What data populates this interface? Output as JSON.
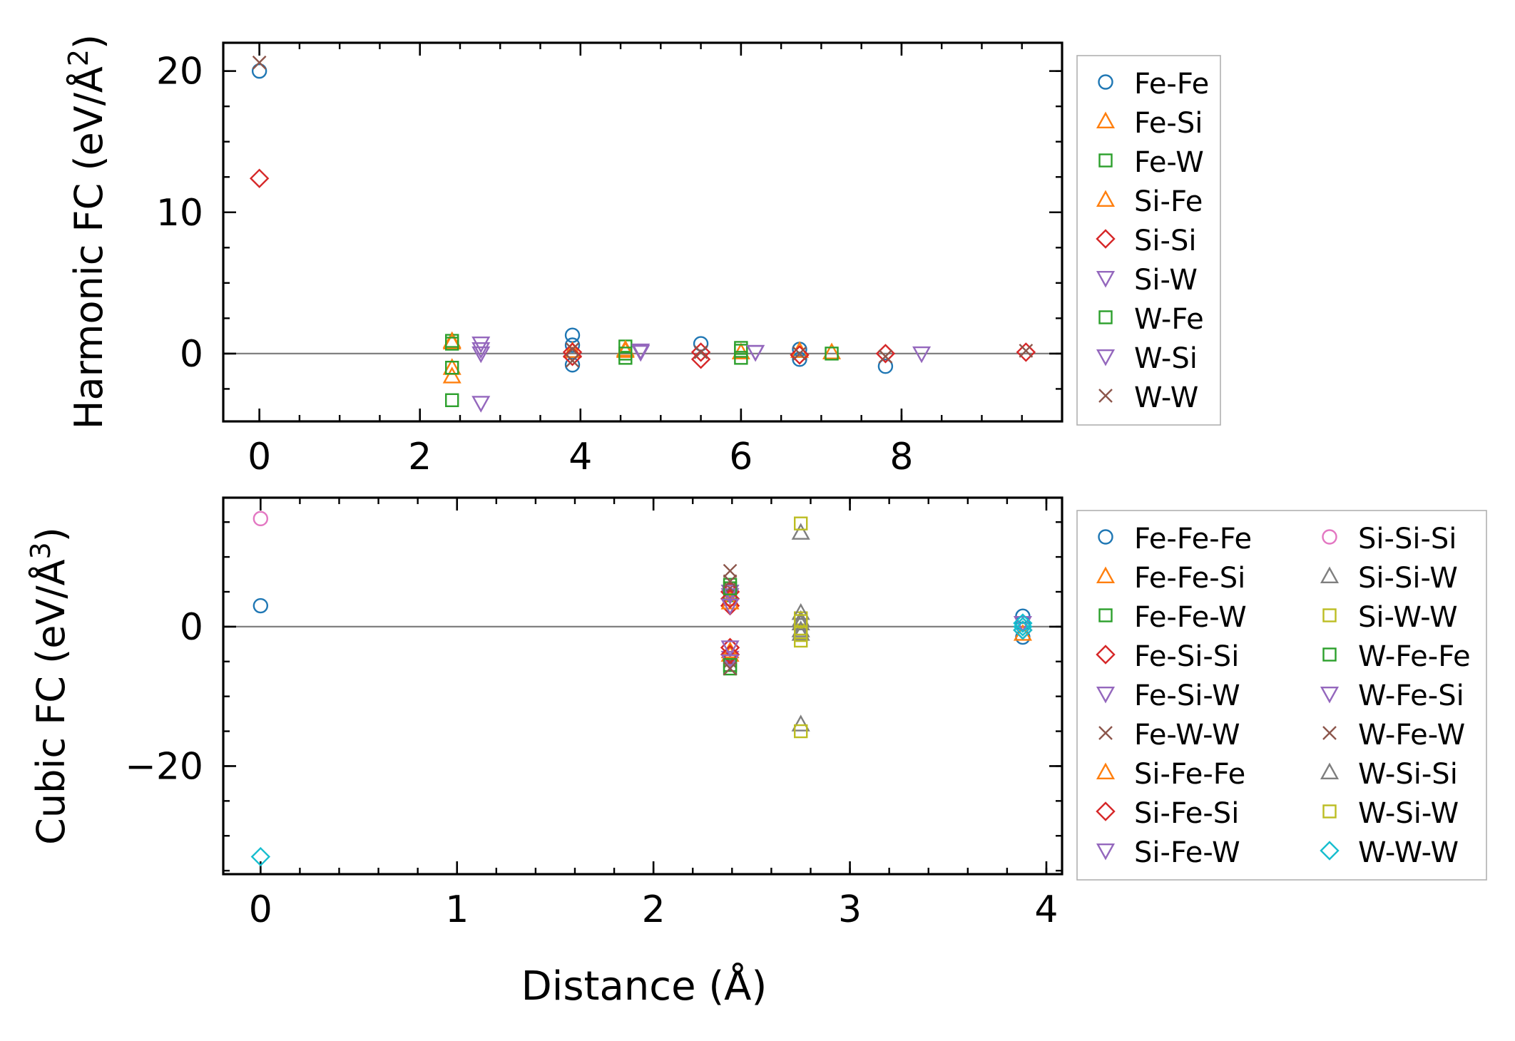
{
  "colors": {
    "c0": "#1f77b4",
    "c1": "#ff7f0e",
    "c2": "#2ca02c",
    "c3": "#d62728",
    "c4": "#9467bd",
    "c5": "#8c564b",
    "c6": "#e377c2",
    "c7": "#7f7f7f",
    "c8": "#bcbd22",
    "c9": "#17becf",
    "zero_line": "#808080"
  },
  "xlabel": "Distance (Å)",
  "chart_data": [
    {
      "type": "scatter",
      "ylabel": "Harmonic FC (eV/Å²)",
      "ylabel_text": "Harmonic FC (eV/Å",
      "ylabel_sup": "2",
      "ylabel_close": ")",
      "xlim": [
        -0.45,
        10.0
      ],
      "ylim": [
        -4.8,
        22.0
      ],
      "xticks": [
        0,
        2,
        4,
        6,
        8
      ],
      "xtick_labels": [
        "0",
        "2",
        "4",
        "6",
        "8"
      ],
      "yticks": [
        0,
        10,
        20
      ],
      "ytick_labels": [
        "0",
        "10",
        "20"
      ],
      "reference_line": 0,
      "legend_columns": 1,
      "series": [
        {
          "name": "Fe-Fe",
          "marker": "circle",
          "color": "#1f77b4",
          "x": [
            0,
            3.9,
            3.9,
            3.9,
            5.5,
            6.73,
            6.73,
            7.8
          ],
          "y": [
            20.0,
            1.3,
            0.6,
            -0.8,
            0.7,
            0.3,
            -0.4,
            -0.9
          ]
        },
        {
          "name": "Fe-Si",
          "marker": "triangle-up",
          "color": "#ff7f0e",
          "x": [
            2.4,
            2.4,
            2.4,
            3.9,
            4.56,
            6.0,
            7.13
          ],
          "y": [
            0.9,
            -1.0,
            -1.6,
            0.2,
            0.2,
            0.1,
            0.1
          ]
        },
        {
          "name": "Fe-W",
          "marker": "square",
          "color": "#2ca02c",
          "x": [
            2.4,
            2.4,
            2.4,
            4.56,
            4.56,
            6.0,
            6.0,
            7.13
          ],
          "y": [
            0.9,
            -1.0,
            -3.3,
            0.5,
            -0.3,
            0.4,
            -0.3,
            0.0
          ]
        },
        {
          "name": "Si-Fe",
          "marker": "triangle-up",
          "color": "#ff7f0e",
          "x": [
            2.4,
            4.56,
            6.73
          ],
          "y": [
            0.8,
            0.3,
            0.2
          ]
        },
        {
          "name": "Si-Si",
          "marker": "diamond",
          "color": "#d62728",
          "x": [
            0,
            3.9,
            3.9,
            5.5,
            5.5,
            6.73,
            7.8,
            9.55
          ],
          "y": [
            12.4,
            0.1,
            -0.2,
            0.1,
            -0.4,
            -0.1,
            0.0,
            0.1
          ]
        },
        {
          "name": "Si-W",
          "marker": "triangle-down",
          "color": "#9467bd",
          "x": [
            2.76,
            2.76,
            4.75,
            6.18,
            8.25
          ],
          "y": [
            0.7,
            0.0,
            0.2,
            0.1,
            0.0
          ]
        },
        {
          "name": "W-Fe",
          "marker": "square",
          "color": "#2ca02c",
          "x": [
            2.4,
            4.56,
            6.0
          ],
          "y": [
            0.7,
            0.0,
            0.2
          ]
        },
        {
          "name": "W-Si",
          "marker": "triangle-down",
          "color": "#9467bd",
          "x": [
            2.76,
            2.76,
            4.75,
            6.18
          ],
          "y": [
            0.3,
            -3.5,
            0.1,
            0.1
          ]
        },
        {
          "name": "W-W",
          "marker": "x",
          "color": "#8c564b",
          "x": [
            0,
            3.9,
            3.9,
            5.5,
            6.73,
            7.8,
            9.55
          ],
          "y": [
            20.6,
            -0.5,
            0.3,
            0.1,
            0.0,
            -0.2,
            0.2
          ]
        }
      ]
    },
    {
      "type": "scatter",
      "ylabel": "Cubic FC (eV/Å³)",
      "ylabel_text": "Cubic FC (eV/Å",
      "ylabel_sup": "3",
      "ylabel_close": ")",
      "xlim": [
        -0.19,
        4.08
      ],
      "ylim": [
        -35.5,
        18.5
      ],
      "xticks": [
        0,
        1,
        2,
        3,
        4
      ],
      "xtick_labels": [
        "0",
        "1",
        "2",
        "3",
        "4"
      ],
      "yticks": [
        -20,
        0
      ],
      "ytick_labels": [
        "−20",
        "0"
      ],
      "reference_line": 0,
      "legend_columns": 2,
      "series": [
        {
          "name": "Fe-Fe-Fe",
          "marker": "circle",
          "color": "#1f77b4",
          "x": [
            0,
            3.88,
            3.88,
            3.88
          ],
          "y": [
            3.0,
            1.5,
            -1.5,
            0.5
          ]
        },
        {
          "name": "Fe-Fe-Si",
          "marker": "triangle-up",
          "color": "#ff7f0e",
          "x": [
            2.39,
            2.39,
            3.88
          ],
          "y": [
            4.0,
            -4.0,
            -1.0
          ]
        },
        {
          "name": "Fe-Fe-W",
          "marker": "square",
          "color": "#2ca02c",
          "x": [
            2.39,
            2.39,
            2.39
          ],
          "y": [
            6.0,
            -6.0,
            4.5
          ]
        },
        {
          "name": "Fe-Si-Si",
          "marker": "diamond",
          "color": "#d62728",
          "x": [
            2.39,
            2.39,
            2.39,
            3.88
          ],
          "y": [
            3.0,
            -3.0,
            5.0,
            -0.5
          ]
        },
        {
          "name": "Fe-Si-W",
          "marker": "triangle-down",
          "color": "#9467bd",
          "x": [
            2.39,
            2.39,
            3.88
          ],
          "y": [
            4.5,
            -4.5,
            0.5
          ]
        },
        {
          "name": "Fe-W-W",
          "marker": "x",
          "color": "#8c564b",
          "x": [
            2.39,
            2.39,
            2.39
          ],
          "y": [
            8.0,
            -5.0,
            5.5
          ]
        },
        {
          "name": "Si-Fe-Fe",
          "marker": "triangle-up",
          "color": "#ff7f0e",
          "x": [
            2.39,
            2.39
          ],
          "y": [
            3.5,
            -3.5
          ]
        },
        {
          "name": "Si-Fe-Si",
          "marker": "diamond",
          "color": "#d62728",
          "x": [
            2.39,
            2.39
          ],
          "y": [
            4.0,
            -4.0
          ]
        },
        {
          "name": "Si-Fe-W",
          "marker": "triangle-down",
          "color": "#9467bd",
          "x": [
            2.39,
            2.39
          ],
          "y": [
            5.0,
            -5.0
          ]
        },
        {
          "name": "Si-Si-Si",
          "marker": "circle",
          "color": "#e377c2",
          "x": [
            0
          ],
          "y": [
            15.5
          ]
        },
        {
          "name": "Si-Si-W",
          "marker": "triangle-up",
          "color": "#7f7f7f",
          "x": [
            2.75,
            2.75,
            2.75,
            2.75
          ],
          "y": [
            13.5,
            -14.0,
            1.0,
            -1.0
          ]
        },
        {
          "name": "Si-W-W",
          "marker": "square",
          "color": "#bcbd22",
          "x": [
            2.75,
            2.75,
            2.75,
            2.75
          ],
          "y": [
            14.8,
            -15.0,
            1.2,
            -1.2
          ]
        },
        {
          "name": "W-Fe-Fe",
          "marker": "square",
          "color": "#2ca02c",
          "x": [
            2.39,
            2.39
          ],
          "y": [
            5.5,
            -5.5
          ]
        },
        {
          "name": "W-Fe-Si",
          "marker": "triangle-down",
          "color": "#9467bd",
          "x": [
            2.39,
            2.39
          ],
          "y": [
            3.0,
            -3.0
          ]
        },
        {
          "name": "W-Fe-W",
          "marker": "x",
          "color": "#8c564b",
          "x": [
            2.39,
            2.39
          ],
          "y": [
            6.5,
            -6.0
          ]
        },
        {
          "name": "W-Si-Si",
          "marker": "triangle-up",
          "color": "#7f7f7f",
          "x": [
            2.75,
            2.75,
            2.75
          ],
          "y": [
            0.5,
            -0.5,
            2.0
          ]
        },
        {
          "name": "W-Si-W",
          "marker": "square",
          "color": "#bcbd22",
          "x": [
            2.75,
            2.75,
            2.75
          ],
          "y": [
            0.8,
            -0.8,
            -2.0
          ]
        },
        {
          "name": "W-W-W",
          "marker": "diamond",
          "color": "#17becf",
          "x": [
            0,
            3.88,
            3.88,
            3.88
          ],
          "y": [
            -33.0,
            0.5,
            -0.5,
            0.0
          ]
        }
      ]
    }
  ]
}
